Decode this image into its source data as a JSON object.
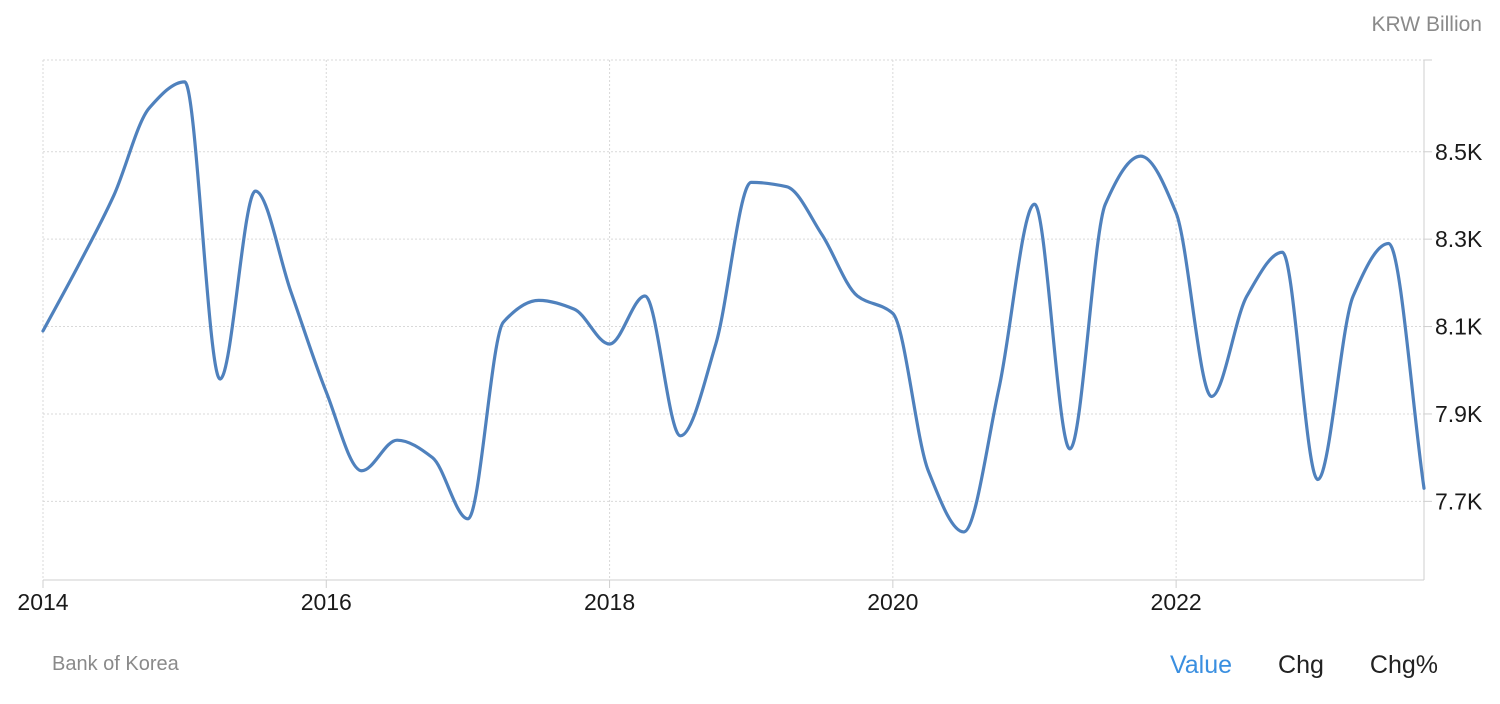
{
  "unit_label": "KRW Billion",
  "source": "Bank of Korea",
  "toggles": {
    "value": "Value",
    "chg": "Chg",
    "chg_pct": "Chg%"
  },
  "colors": {
    "line": "#4f81bd",
    "active_toggle": "#3a8fe0",
    "grid": "#d9d9d9"
  },
  "chart_data": {
    "type": "line",
    "title": "",
    "xlabel": "",
    "ylabel": "",
    "unit": "KRW Billion",
    "xlim": [
      2014.0,
      2023.75
    ],
    "ylim": [
      7.52,
      8.71
    ],
    "x_ticks": [
      2014,
      2016,
      2018,
      2020,
      2022
    ],
    "x_tick_labels": [
      "2014",
      "2016",
      "2018",
      "2020",
      "2022"
    ],
    "y_ticks": [
      7.7,
      7.9,
      8.1,
      8.3,
      8.5
    ],
    "y_tick_labels": [
      "7.7K",
      "7.9K",
      "8.1K",
      "8.3K",
      "8.5K"
    ],
    "y_axis_position": "right",
    "grid": true,
    "series": [
      {
        "x": [
          2014.0,
          2014.25,
          2014.5,
          2014.75,
          2015.0,
          2015.25,
          2015.5,
          2015.75,
          2016.0,
          2016.25,
          2016.5,
          2016.75,
          2017.0,
          2017.25,
          2017.5,
          2017.75,
          2018.0,
          2018.25,
          2018.5,
          2018.75,
          2019.0,
          2019.25,
          2019.5,
          2019.75,
          2020.0,
          2020.25,
          2020.5,
          2020.75,
          2021.0,
          2021.25,
          2021.5,
          2021.75,
          2022.0,
          2022.25,
          2022.5,
          2022.75,
          2023.0,
          2023.25,
          2023.5,
          2023.75
        ],
        "values": [
          8.09,
          8.24,
          8.4,
          8.6,
          8.66,
          7.98,
          8.41,
          8.18,
          7.95,
          7.77,
          7.84,
          7.8,
          7.66,
          8.11,
          8.16,
          8.14,
          8.06,
          8.17,
          7.85,
          8.06,
          8.43,
          8.42,
          8.31,
          8.17,
          8.13,
          7.77,
          7.63,
          7.96,
          8.38,
          7.82,
          8.38,
          8.49,
          8.36,
          7.94,
          8.17,
          8.27,
          7.75,
          8.17,
          8.29,
          7.73
        ]
      }
    ]
  }
}
